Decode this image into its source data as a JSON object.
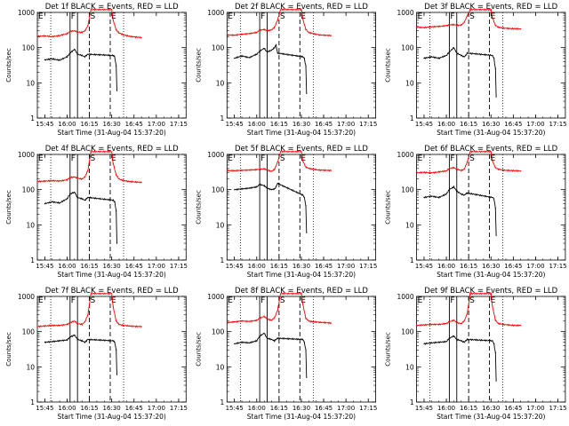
{
  "figure": {
    "xlabel": "Start Time (31-Aug-04 15:37:20)",
    "ylabel": "Counts/sec",
    "x_tick_labels": [
      "15:45",
      "16:00",
      "16:15",
      "16:30",
      "16:45",
      "17:00",
      "17:15"
    ],
    "y_tick_labels": [
      "1",
      "10",
      "100",
      "1000"
    ],
    "interval_labels": {
      "E": "E",
      "F": "F",
      "S": "S"
    }
  },
  "colors": {
    "events": "#000000",
    "lld": "#ff0000",
    "axes": "#000000"
  },
  "chart_data": [
    {
      "type": "line",
      "title": "Det 1f BLACK = Events, RED = LLD",
      "ylog": true,
      "ylim": [
        1,
        1000
      ],
      "xlim": [
        0,
        100
      ],
      "vlines": {
        "dotted": [
          9,
          58
        ],
        "solid": [
          22,
          27
        ],
        "dashed": [
          35,
          49
        ],
        "labels": [
          {
            "text": "E",
            "x": 0
          },
          {
            "text": "F",
            "x": 22
          },
          {
            "text": "S",
            "x": 35
          },
          {
            "text": "E",
            "x": 49
          }
        ]
      },
      "series": [
        {
          "name": "LLD",
          "color": "#ff0000",
          "x": [
            0,
            5,
            10,
            15,
            20,
            22,
            25,
            27,
            30,
            32,
            34,
            36,
            50,
            51,
            53,
            55,
            58,
            62,
            66,
            70
          ],
          "y": [
            210,
            215,
            205,
            220,
            250,
            290,
            300,
            280,
            270,
            300,
            420,
            1200,
            1200,
            600,
            320,
            260,
            230,
            210,
            200,
            195
          ]
        },
        {
          "name": "Events",
          "color": "#000000",
          "x": [
            5,
            10,
            15,
            20,
            22,
            25,
            27,
            30,
            32,
            33,
            34,
            51,
            52,
            53,
            53.5
          ],
          "y": [
            45,
            48,
            44,
            55,
            70,
            90,
            65,
            60,
            55,
            60,
            65,
            60,
            55,
            30,
            6
          ]
        }
      ]
    },
    {
      "type": "line",
      "title": "Det 2f BLACK = Events, RED = LLD",
      "ylog": true,
      "ylim": [
        1,
        1000
      ],
      "xlim": [
        0,
        100
      ],
      "vlines": {
        "dotted": [
          9,
          58
        ],
        "solid": [
          22,
          27
        ],
        "dashed": [
          35,
          49
        ],
        "labels": [
          {
            "text": "E",
            "x": 0
          },
          {
            "text": "F",
            "x": 22
          },
          {
            "text": "S",
            "x": 35
          },
          {
            "text": "E",
            "x": 49
          }
        ]
      },
      "series": [
        {
          "name": "LLD",
          "color": "#ff0000",
          "x": [
            0,
            5,
            10,
            15,
            20,
            22,
            25,
            27,
            30,
            32,
            34,
            36,
            50,
            51,
            53,
            55,
            58,
            62,
            66,
            70
          ],
          "y": [
            230,
            225,
            240,
            250,
            270,
            310,
            330,
            300,
            320,
            380,
            600,
            1200,
            1200,
            650,
            330,
            270,
            250,
            230,
            225,
            220
          ]
        },
        {
          "name": "Events",
          "color": "#000000",
          "x": [
            5,
            10,
            15,
            20,
            22,
            25,
            27,
            30,
            32,
            33,
            34,
            51,
            52,
            53,
            53.5
          ],
          "y": [
            50,
            58,
            52,
            65,
            80,
            95,
            75,
            85,
            100,
            120,
            70,
            55,
            50,
            30,
            5
          ]
        }
      ]
    },
    {
      "type": "line",
      "title": "Det 3f BLACK = Events, RED = LLD",
      "ylog": true,
      "ylim": [
        1,
        1000
      ],
      "xlim": [
        0,
        100
      ],
      "vlines": {
        "dotted": [
          9,
          58
        ],
        "solid": [
          22,
          27
        ],
        "dashed": [
          35,
          49
        ],
        "labels": [
          {
            "text": "E",
            "x": 0
          },
          {
            "text": "F",
            "x": 22
          },
          {
            "text": "S",
            "x": 35
          },
          {
            "text": "E",
            "x": 49
          }
        ]
      },
      "series": [
        {
          "name": "LLD",
          "color": "#ff0000",
          "x": [
            0,
            5,
            10,
            15,
            20,
            22,
            25,
            27,
            30,
            32,
            34,
            36,
            50,
            51,
            53,
            55,
            58,
            62,
            66,
            70
          ],
          "y": [
            380,
            370,
            390,
            400,
            420,
            440,
            450,
            430,
            440,
            520,
            800,
            1200,
            1200,
            700,
            430,
            380,
            360,
            350,
            345,
            340
          ]
        },
        {
          "name": "Events",
          "color": "#000000",
          "x": [
            5,
            10,
            15,
            20,
            22,
            25,
            27,
            30,
            32,
            33,
            34,
            51,
            52,
            53,
            53.5
          ],
          "y": [
            50,
            55,
            50,
            60,
            75,
            100,
            70,
            60,
            55,
            60,
            70,
            60,
            50,
            25,
            4
          ]
        }
      ]
    },
    {
      "type": "line",
      "title": "Det 4f BLACK = Events, RED = LLD",
      "ylog": true,
      "ylim": [
        1,
        1000
      ],
      "xlim": [
        0,
        100
      ],
      "vlines": {
        "dotted": [
          9,
          58
        ],
        "solid": [
          22,
          27
        ],
        "dashed": [
          35,
          49
        ],
        "labels": [
          {
            "text": "E",
            "x": 0
          },
          {
            "text": "F",
            "x": 22
          },
          {
            "text": "S",
            "x": 35
          },
          {
            "text": "E",
            "x": 49
          }
        ]
      },
      "series": [
        {
          "name": "LLD",
          "color": "#ff0000",
          "x": [
            0,
            5,
            10,
            15,
            20,
            22,
            25,
            27,
            30,
            32,
            34,
            36,
            50,
            51,
            53,
            55,
            58,
            62,
            66,
            70
          ],
          "y": [
            170,
            175,
            180,
            175,
            190,
            220,
            230,
            210,
            200,
            230,
            350,
            1200,
            1200,
            550,
            260,
            200,
            180,
            170,
            165,
            160
          ]
        },
        {
          "name": "Events",
          "color": "#000000",
          "x": [
            5,
            10,
            15,
            20,
            22,
            25,
            27,
            30,
            32,
            33,
            34,
            51,
            52,
            53,
            53.5
          ],
          "y": [
            40,
            45,
            42,
            55,
            75,
            85,
            60,
            55,
            50,
            55,
            60,
            50,
            45,
            25,
            3
          ]
        }
      ]
    },
    {
      "type": "line",
      "title": "Det 5f BLACK = Events, RED = LLD",
      "ylog": true,
      "ylim": [
        1,
        1000
      ],
      "xlim": [
        0,
        100
      ],
      "vlines": {
        "dotted": [
          9,
          58
        ],
        "solid": [
          22,
          27
        ],
        "dashed": [
          35,
          49
        ],
        "labels": [
          {
            "text": "E",
            "x": 0
          },
          {
            "text": "F",
            "x": 22
          },
          {
            "text": "S",
            "x": 35
          },
          {
            "text": "E",
            "x": 49
          }
        ]
      },
      "series": [
        {
          "name": "LLD",
          "color": "#ff0000",
          "x": [
            0,
            5,
            10,
            15,
            20,
            22,
            25,
            27,
            30,
            32,
            34,
            36,
            50,
            51,
            53,
            55,
            58,
            62,
            66,
            70
          ],
          "y": [
            350,
            345,
            355,
            360,
            370,
            380,
            390,
            360,
            330,
            380,
            600,
            1200,
            1200,
            650,
            440,
            400,
            380,
            360,
            355,
            350
          ]
        },
        {
          "name": "Events",
          "color": "#000000",
          "x": [
            5,
            10,
            15,
            20,
            22,
            25,
            27,
            30,
            32,
            33,
            34,
            51,
            52,
            53,
            53.5
          ],
          "y": [
            100,
            105,
            110,
            120,
            140,
            130,
            110,
            100,
            105,
            120,
            150,
            70,
            60,
            35,
            6
          ]
        }
      ]
    },
    {
      "type": "line",
      "title": "Det 6f BLACK = Events, RED = LLD",
      "ylog": true,
      "ylim": [
        1,
        1000
      ],
      "xlim": [
        0,
        100
      ],
      "vlines": {
        "dotted": [
          9,
          58
        ],
        "solid": [
          22,
          27
        ],
        "dashed": [
          35,
          49
        ],
        "labels": [
          {
            "text": "E",
            "x": 0
          },
          {
            "text": "F",
            "x": 22
          },
          {
            "text": "S",
            "x": 35
          },
          {
            "text": "E",
            "x": 49
          }
        ]
      },
      "series": [
        {
          "name": "LLD",
          "color": "#ff0000",
          "x": [
            0,
            5,
            10,
            15,
            20,
            22,
            25,
            27,
            30,
            32,
            34,
            36,
            50,
            51,
            53,
            55,
            58,
            62,
            66,
            70
          ],
          "y": [
            300,
            310,
            300,
            320,
            340,
            400,
            420,
            380,
            350,
            380,
            600,
            1200,
            1200,
            650,
            420,
            380,
            360,
            350,
            345,
            340
          ]
        },
        {
          "name": "Events",
          "color": "#000000",
          "x": [
            5,
            10,
            15,
            20,
            22,
            25,
            27,
            30,
            32,
            33,
            34,
            51,
            52,
            53,
            53.5
          ],
          "y": [
            60,
            65,
            60,
            75,
            100,
            120,
            90,
            75,
            70,
            75,
            80,
            60,
            55,
            30,
            5
          ]
        }
      ]
    },
    {
      "type": "line",
      "title": "Det 7f BLACK = Events, RED = LLD",
      "ylog": true,
      "ylim": [
        1,
        1000
      ],
      "xlim": [
        0,
        100
      ],
      "vlines": {
        "dotted": [
          9,
          58
        ],
        "solid": [
          22,
          27
        ],
        "dashed": [
          35,
          49
        ],
        "labels": [
          {
            "text": "E",
            "x": 0
          },
          {
            "text": "F",
            "x": 22
          },
          {
            "text": "S",
            "x": 35
          },
          {
            "text": "E",
            "x": 49
          }
        ]
      },
      "series": [
        {
          "name": "LLD",
          "color": "#ff0000",
          "x": [
            0,
            5,
            10,
            15,
            20,
            22,
            25,
            27,
            30,
            32,
            34,
            36,
            50,
            51,
            53,
            55,
            58,
            62,
            66,
            70
          ],
          "y": [
            140,
            145,
            150,
            150,
            160,
            180,
            200,
            170,
            160,
            190,
            300,
            1200,
            1200,
            500,
            200,
            160,
            150,
            145,
            140,
            140
          ]
        },
        {
          "name": "Events",
          "color": "#000000",
          "x": [
            5,
            10,
            15,
            20,
            22,
            25,
            27,
            30,
            32,
            33,
            34,
            51,
            52,
            53,
            53.5
          ],
          "y": [
            50,
            52,
            55,
            58,
            70,
            80,
            60,
            55,
            50,
            55,
            60,
            55,
            50,
            30,
            6
          ]
        }
      ]
    },
    {
      "type": "line",
      "title": "Det 8f BLACK = Events, RED = LLD",
      "ylog": true,
      "ylim": [
        1,
        1000
      ],
      "xlim": [
        0,
        100
      ],
      "vlines": {
        "dotted": [
          9,
          58
        ],
        "solid": [
          22,
          27
        ],
        "dashed": [
          35,
          49
        ],
        "labels": [
          {
            "text": "E",
            "x": 0
          },
          {
            "text": "F",
            "x": 22
          },
          {
            "text": "S",
            "x": 35
          },
          {
            "text": "E",
            "x": 49
          }
        ]
      },
      "series": [
        {
          "name": "LLD",
          "color": "#ff0000",
          "x": [
            0,
            5,
            10,
            15,
            20,
            22,
            25,
            27,
            30,
            32,
            34,
            36,
            50,
            51,
            53,
            55,
            58,
            62,
            66,
            70
          ],
          "y": [
            180,
            190,
            200,
            195,
            210,
            240,
            270,
            230,
            210,
            250,
            400,
            1200,
            1200,
            600,
            240,
            200,
            190,
            185,
            180,
            175
          ]
        },
        {
          "name": "Events",
          "color": "#000000",
          "x": [
            5,
            10,
            15,
            20,
            22,
            25,
            27,
            30,
            32,
            33,
            34,
            51,
            52,
            53,
            53.5
          ],
          "y": [
            45,
            50,
            48,
            55,
            75,
            90,
            65,
            60,
            55,
            60,
            65,
            60,
            50,
            30,
            5
          ]
        }
      ]
    },
    {
      "type": "line",
      "title": "Det 9f BLACK = Events, RED = LLD",
      "ylog": true,
      "ylim": [
        1,
        1000
      ],
      "xlim": [
        0,
        100
      ],
      "vlines": {
        "dotted": [
          9,
          58
        ],
        "solid": [
          22,
          27
        ],
        "dashed": [
          35,
          49
        ],
        "labels": [
          {
            "text": "E",
            "x": 0
          },
          {
            "text": "F",
            "x": 22
          },
          {
            "text": "S",
            "x": 35
          },
          {
            "text": "E",
            "x": 49
          }
        ]
      },
      "series": [
        {
          "name": "LLD",
          "color": "#ff0000",
          "x": [
            0,
            5,
            10,
            15,
            20,
            22,
            25,
            27,
            30,
            32,
            34,
            36,
            50,
            51,
            53,
            55,
            58,
            62,
            66,
            70
          ],
          "y": [
            150,
            155,
            160,
            160,
            170,
            190,
            210,
            180,
            170,
            200,
            320,
            1200,
            1200,
            520,
            210,
            170,
            160,
            155,
            150,
            150
          ]
        },
        {
          "name": "Events",
          "color": "#000000",
          "x": [
            5,
            10,
            15,
            20,
            22,
            25,
            27,
            30,
            32,
            33,
            34,
            51,
            52,
            53,
            53.5
          ],
          "y": [
            45,
            48,
            50,
            52,
            65,
            75,
            60,
            55,
            50,
            55,
            60,
            55,
            45,
            25,
            4
          ]
        }
      ]
    }
  ]
}
